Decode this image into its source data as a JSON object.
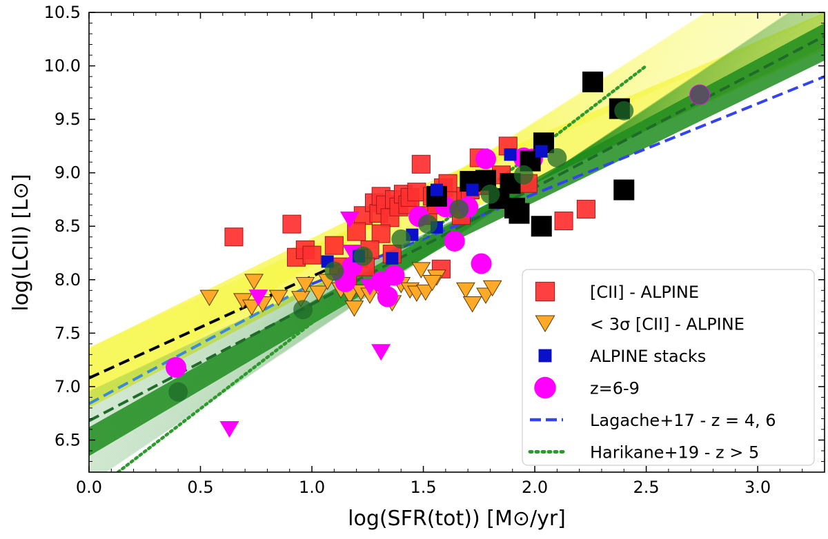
{
  "chart_data": {
    "type": "scatter",
    "xlabel": "log(SFR(tot)) [M⊙/yr]",
    "ylabel": "log(LCII) [L⊙]",
    "xlim": [
      0.0,
      3.3
    ],
    "ylim": [
      6.2,
      10.5
    ],
    "xticks": [
      "0.0",
      "0.5",
      "1.0",
      "1.5",
      "2.0",
      "2.5",
      "3.0"
    ],
    "yticks": [
      "6.5",
      "7.0",
      "7.5",
      "8.0",
      "8.5",
      "9.0",
      "9.5",
      "10.0",
      "10.5"
    ],
    "grid": false,
    "legend_position": "lower-right",
    "colors": {
      "red": "#ff3030",
      "orange": "#ffa928",
      "blue": "#0a10c8",
      "magenta": "#ff00ff",
      "black": "#000000",
      "dark_green": "#1f6b2a",
      "green_band": "#1e8c1e",
      "yellow_band": "#f5f542",
      "lagache": "#3344ee",
      "harikane": "#2d9a2d",
      "light_blue": "#3a8ad8"
    },
    "series": [
      {
        "name": "[CII] - ALPINE",
        "marker": "square",
        "points": [
          [
            0.65,
            8.4
          ],
          [
            0.91,
            8.52
          ],
          [
            0.93,
            8.21
          ],
          [
            0.97,
            8.28
          ],
          [
            1.0,
            8.23
          ],
          [
            1.12,
            8.12
          ],
          [
            1.23,
            8.6
          ],
          [
            1.28,
            8.72
          ],
          [
            1.3,
            8.62
          ],
          [
            1.31,
            8.78
          ],
          [
            1.33,
            8.7
          ],
          [
            1.35,
            8.58
          ],
          [
            1.37,
            8.75
          ],
          [
            1.39,
            8.68
          ],
          [
            1.41,
            8.8
          ],
          [
            1.43,
            8.7
          ],
          [
            1.44,
            8.77
          ],
          [
            1.47,
            8.82
          ],
          [
            1.49,
            9.08
          ],
          [
            1.52,
            8.6
          ],
          [
            1.54,
            8.78
          ],
          [
            1.56,
            8.7
          ],
          [
            1.59,
            8.86
          ],
          [
            1.61,
            8.9
          ],
          [
            1.64,
            8.74
          ],
          [
            1.67,
            8.6
          ],
          [
            1.69,
            8.78
          ],
          [
            1.71,
            8.84
          ],
          [
            1.75,
            9.14
          ],
          [
            1.77,
            8.88
          ],
          [
            1.85,
            8.98
          ],
          [
            1.88,
            9.25
          ],
          [
            1.97,
            8.9
          ],
          [
            2.13,
            8.55
          ],
          [
            2.23,
            8.66
          ],
          [
            1.31,
            8.43
          ],
          [
            1.26,
            8.28
          ],
          [
            1.36,
            8.24
          ],
          [
            1.2,
            8.45
          ],
          [
            1.1,
            8.32
          ],
          [
            1.21,
            8.2
          ],
          [
            1.58,
            8.1
          ],
          [
            1.16,
            8.02
          ],
          [
            1.24,
            8.12
          ]
        ]
      },
      {
        "name": "< 3σ [CII] - ALPINE",
        "marker": "triangle-down",
        "points": [
          [
            0.54,
            7.83
          ],
          [
            0.74,
            7.98
          ],
          [
            0.69,
            7.8
          ],
          [
            0.73,
            7.74
          ],
          [
            0.78,
            7.77
          ],
          [
            0.85,
            7.83
          ],
          [
            0.95,
            7.82
          ],
          [
            0.97,
            7.95
          ],
          [
            1.03,
            7.87
          ],
          [
            1.07,
            7.98
          ],
          [
            1.13,
            7.9
          ],
          [
            1.17,
            7.85
          ],
          [
            1.19,
            7.73
          ],
          [
            1.22,
            7.88
          ],
          [
            1.26,
            7.85
          ],
          [
            1.3,
            7.92
          ],
          [
            1.36,
            7.78
          ],
          [
            1.4,
            7.95
          ],
          [
            1.44,
            7.9
          ],
          [
            1.47,
            7.87
          ],
          [
            1.49,
            8.09
          ],
          [
            1.51,
            7.88
          ],
          [
            1.56,
            8.02
          ],
          [
            1.69,
            7.9
          ],
          [
            1.72,
            7.77
          ],
          [
            1.78,
            7.85
          ],
          [
            1.81,
            7.92
          ],
          [
            1.54,
            7.97
          ]
        ]
      },
      {
        "name": "ALPINE stacks",
        "marker": "square-small",
        "points": [
          [
            1.07,
            8.17
          ],
          [
            1.21,
            8.22
          ],
          [
            1.36,
            8.2
          ],
          [
            1.45,
            8.42
          ],
          [
            1.56,
            8.49
          ],
          [
            1.56,
            8.84
          ],
          [
            1.72,
            8.84
          ],
          [
            1.89,
            9.17
          ],
          [
            2.03,
            9.2
          ]
        ]
      },
      {
        "name": "z=6-9",
        "marker": "circle",
        "points": [
          [
            0.39,
            7.18
          ],
          [
            1.15,
            7.98
          ],
          [
            1.18,
            8.12
          ],
          [
            1.31,
            7.98
          ],
          [
            1.34,
            7.84
          ],
          [
            1.37,
            8.04
          ],
          [
            1.48,
            8.59
          ],
          [
            1.6,
            8.68
          ],
          [
            1.64,
            8.36
          ],
          [
            1.7,
            8.68
          ],
          [
            1.78,
            9.13
          ],
          [
            1.76,
            8.15
          ],
          [
            1.95,
            9.14
          ],
          [
            1.99,
            9.13
          ],
          [
            2.74,
            9.73
          ]
        ]
      },
      {
        "name": "z=6-9 upper limits",
        "marker": "triangle-down-magenta",
        "points": [
          [
            0.63,
            6.6
          ],
          [
            0.76,
            7.83
          ],
          [
            1.13,
            7.97
          ],
          [
            1.18,
            8.25
          ],
          [
            1.17,
            8.56
          ],
          [
            1.26,
            7.93
          ],
          [
            1.31,
            7.32
          ]
        ]
      },
      {
        "name": "black squares",
        "marker": "square-black",
        "points": [
          [
            1.56,
            8.78
          ],
          [
            1.71,
            8.92
          ],
          [
            1.78,
            8.93
          ],
          [
            1.84,
            8.76
          ],
          [
            1.89,
            8.9
          ],
          [
            1.91,
            8.67
          ],
          [
            1.93,
            8.62
          ],
          [
            1.98,
            9.11
          ],
          [
            2.04,
            9.28
          ],
          [
            2.03,
            8.5
          ],
          [
            2.26,
            9.85
          ],
          [
            2.38,
            9.6
          ],
          [
            2.4,
            8.84
          ]
        ]
      },
      {
        "name": "dark green points",
        "marker": "circle-dark",
        "points": [
          [
            0.4,
            6.95
          ],
          [
            0.96,
            7.72
          ],
          [
            1.1,
            8.08
          ],
          [
            1.23,
            8.22
          ],
          [
            1.4,
            8.38
          ],
          [
            1.52,
            8.52
          ],
          [
            1.66,
            8.66
          ],
          [
            1.8,
            8.8
          ],
          [
            1.95,
            8.98
          ],
          [
            2.1,
            9.14
          ],
          [
            2.4,
            9.58
          ],
          [
            2.74,
            9.73
          ]
        ]
      }
    ],
    "lines": [
      {
        "name": "Lagache+17 - z = 4, 6",
        "style": "dashed",
        "color": "#3344ee",
        "x": [
          1.0,
          3.3
        ],
        "y": [
          7.96,
          9.9
        ]
      },
      {
        "name": "Lagache extension",
        "style": "dashed",
        "color": "#3a8ad8",
        "x": [
          0.0,
          1.0
        ],
        "y": [
          6.84,
          7.96
        ]
      },
      {
        "name": "Harikane+19 - z > 5",
        "style": "dotted",
        "color": "#2d9a2d",
        "x": [
          0.13,
          2.5
        ],
        "y": [
          6.2,
          10.0
        ]
      },
      {
        "name": "black dashed fit",
        "style": "dashed",
        "color": "#000000",
        "x": [
          0.0,
          1.2
        ],
        "y": [
          7.08,
          8.22
        ]
      },
      {
        "name": "dark green dashed fit",
        "style": "dashed",
        "color": "#1f6b2a",
        "x": [
          0.0,
          3.3
        ],
        "y": [
          6.68,
          10.28
        ]
      }
    ],
    "legend": {
      "entries": [
        {
          "label": "[CII] - ALPINE",
          "marker": "square"
        },
        {
          "label": "< 3σ [CII] - ALPINE",
          "marker": "triangle-down"
        },
        {
          "label": "ALPINE stacks",
          "marker": "square-small"
        },
        {
          "label": "z=6-9",
          "marker": "circle"
        },
        {
          "label": "Lagache+17 - z = 4, 6",
          "marker": "dashed"
        },
        {
          "label": "Harikane+19 - z > 5",
          "marker": "dotted"
        }
      ]
    }
  }
}
